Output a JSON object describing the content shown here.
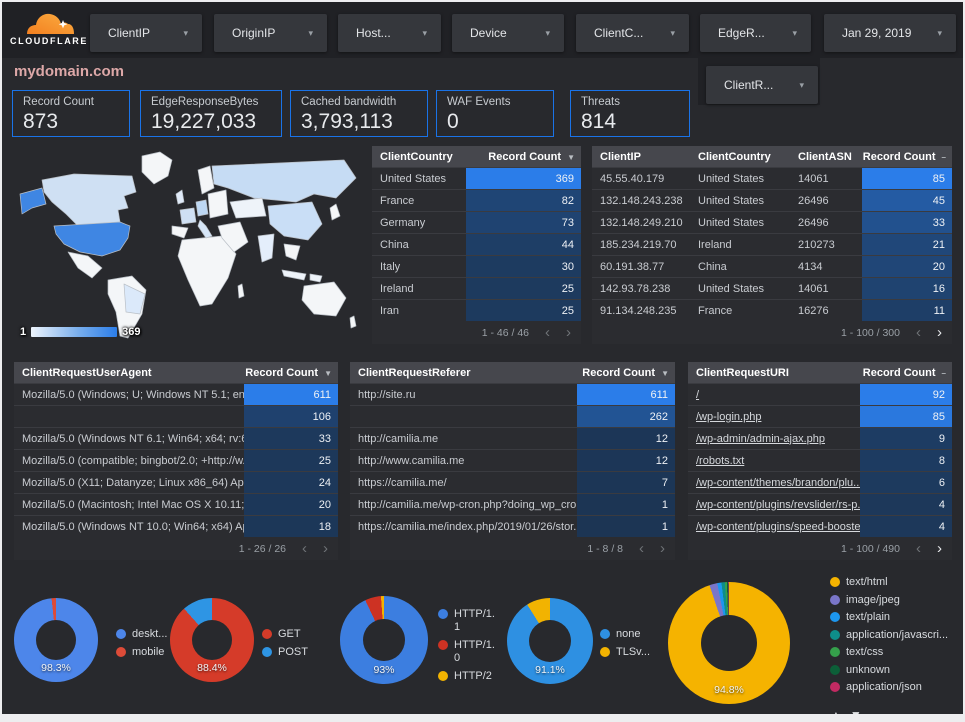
{
  "header": {
    "brand": "CLOUDFLARE",
    "caret_glyph": "▾",
    "filters": [
      "ClientIP",
      "OriginIP",
      "Host...",
      "Device",
      "ClientC...",
      "EdgeR...",
      "Jan 29, 2019"
    ],
    "extra_filter": "ClientR..."
  },
  "title": "mydomain.com",
  "scorecards": [
    {
      "label": "Record Count",
      "value": "873"
    },
    {
      "label": "EdgeResponseBytes",
      "value": "19,227,033"
    },
    {
      "label": "Cached bandwidth",
      "value": "3,793,113"
    },
    {
      "label": "WAF Events",
      "value": "0"
    },
    {
      "label": "Threats",
      "value": "814"
    }
  ],
  "map": {
    "legend_min": "1",
    "legend_max": "369"
  },
  "pager_glyphs": {
    "prev": "‹",
    "next": "›"
  },
  "theme": {
    "accent": "#1a73e8",
    "heat_low": "#1c3554",
    "heat_high": "#2b7de9",
    "title_color": "#dda8a8",
    "map_highlight": "#3f86e3"
  },
  "tables": {
    "country": {
      "cols": [
        "ClientCountry",
        "Record Count"
      ],
      "sort": "▼",
      "rows": [
        [
          "United States",
          369
        ],
        [
          "France",
          82
        ],
        [
          "Germany",
          73
        ],
        [
          "China",
          44
        ],
        [
          "Italy",
          30
        ],
        [
          "Ireland",
          25
        ],
        [
          "Iran",
          25
        ]
      ],
      "page": "1 - 46 / 46",
      "prev_active": false,
      "next_active": false,
      "links": false
    },
    "ip": {
      "cols": [
        "ClientIP",
        "ClientCountry",
        "ClientASN",
        "Record Count"
      ],
      "sort": "–",
      "rows": [
        [
          "45.55.40.179",
          "United States",
          "14061",
          85
        ],
        [
          "132.148.243.238",
          "United States",
          "26496",
          45
        ],
        [
          "132.148.249.210",
          "United States",
          "26496",
          33
        ],
        [
          "185.234.219.70",
          "Ireland",
          "210273",
          21
        ],
        [
          "60.191.38.77",
          "China",
          "4134",
          20
        ],
        [
          "142.93.78.238",
          "United States",
          "14061",
          16
        ],
        [
          "91.134.248.235",
          "France",
          "16276",
          11
        ]
      ],
      "page": "1 - 100 / 300",
      "prev_active": false,
      "next_active": true,
      "links": false
    },
    "ua": {
      "cols": [
        "ClientRequestUserAgent",
        "Record Count"
      ],
      "sort": "▼",
      "rows": [
        [
          "Mozilla/5.0 (Windows; U; Windows NT 5.1; en-U...",
          611
        ],
        [
          "",
          106
        ],
        [
          "Mozilla/5.0 (Windows NT 6.1; Win64; x64; rv:64...",
          33
        ],
        [
          "Mozilla/5.0 (compatible; bingbot/2.0; +http://w...",
          25
        ],
        [
          "Mozilla/5.0 (X11; Datanyze; Linux x86_64) Appl...",
          24
        ],
        [
          "Mozilla/5.0 (Macintosh; Intel Mac OS X 10.11; r...",
          20
        ],
        [
          "Mozilla/5.0 (Windows NT 10.0; Win64; x64) App...",
          18
        ]
      ],
      "page": "1 - 26 / 26",
      "prev_active": false,
      "next_active": false,
      "links": false
    },
    "ref": {
      "cols": [
        "ClientRequestReferer",
        "Record Count"
      ],
      "sort": "▼",
      "rows": [
        [
          "http://site.ru",
          611
        ],
        [
          "",
          262
        ],
        [
          "http://camilia.me",
          12
        ],
        [
          "http://www.camilia.me",
          12
        ],
        [
          "https://camilia.me/",
          7
        ],
        [
          "http://camilia.me/wp-cron.php?doing_wp_cron...",
          1
        ],
        [
          "https://camilia.me/index.php/2019/01/26/stor...",
          1
        ]
      ],
      "page": "1 - 8 / 8",
      "prev_active": false,
      "next_active": false,
      "links": false
    },
    "uri": {
      "cols": [
        "ClientRequestURI",
        "Record Count"
      ],
      "sort": "–",
      "rows": [
        [
          "/",
          92
        ],
        [
          "/wp-login.php",
          85
        ],
        [
          "/wp-admin/admin-ajax.php",
          9
        ],
        [
          "/robots.txt",
          8
        ],
        [
          "/wp-content/themes/brandon/plu...",
          6
        ],
        [
          "/wp-content/plugins/revslider/rs-p...",
          4
        ],
        [
          "/wp-content/plugins/speed-booste...",
          4
        ]
      ],
      "page": "1 - 100 / 490",
      "prev_active": false,
      "next_active": true,
      "links": true
    }
  },
  "donuts": [
    {
      "name": "device-type",
      "pct": "98.3%",
      "slices": [
        {
          "label": "deskt...",
          "value": 98.3,
          "color": "#4d86ea"
        },
        {
          "label": "mobile",
          "value": 1.7,
          "color": "#dd4b38"
        }
      ]
    },
    {
      "name": "http-method",
      "pct": "88.4%",
      "slices": [
        {
          "label": "GET",
          "value": 88.4,
          "color": "#d53b29"
        },
        {
          "label": "POST",
          "value": 11.6,
          "color": "#2e95e4"
        }
      ]
    },
    {
      "name": "http-protocol",
      "pct": "93%",
      "slices": [
        {
          "label": "HTTP/1.1",
          "value": 93,
          "color": "#3c7ee0"
        },
        {
          "label": "HTTP/1.0",
          "value": 5.9,
          "color": "#cd3223"
        },
        {
          "label": "HTTP/2",
          "value": 1.1,
          "color": "#f2b301"
        }
      ]
    },
    {
      "name": "tls-version",
      "pct": "91.1%",
      "slices": [
        {
          "label": "none",
          "value": 91.1,
          "color": "#2e90e2"
        },
        {
          "label": "TLSv...",
          "value": 8.9,
          "color": "#f2b301"
        }
      ]
    },
    {
      "name": "content-type",
      "pct": "94.8%",
      "slices": [
        {
          "label": "text/html",
          "value": 94.8,
          "color": "#f5b300"
        },
        {
          "label": "image/jpeg",
          "value": 2.1,
          "color": "#7a76c9"
        },
        {
          "label": "text/plain",
          "value": 1.1,
          "color": "#1d96ee"
        },
        {
          "label": "application/javascri...",
          "value": 0.9,
          "color": "#0e8d8a"
        },
        {
          "label": "text/css",
          "value": 0.55,
          "color": "#35a04b"
        },
        {
          "label": "unknown",
          "value": 0.35,
          "color": "#0c5f38"
        },
        {
          "label": "application/json",
          "value": 0.2,
          "color": "#c22a62"
        }
      ],
      "legend_controls": {
        "up": "▲",
        "down": "▼"
      }
    }
  ]
}
